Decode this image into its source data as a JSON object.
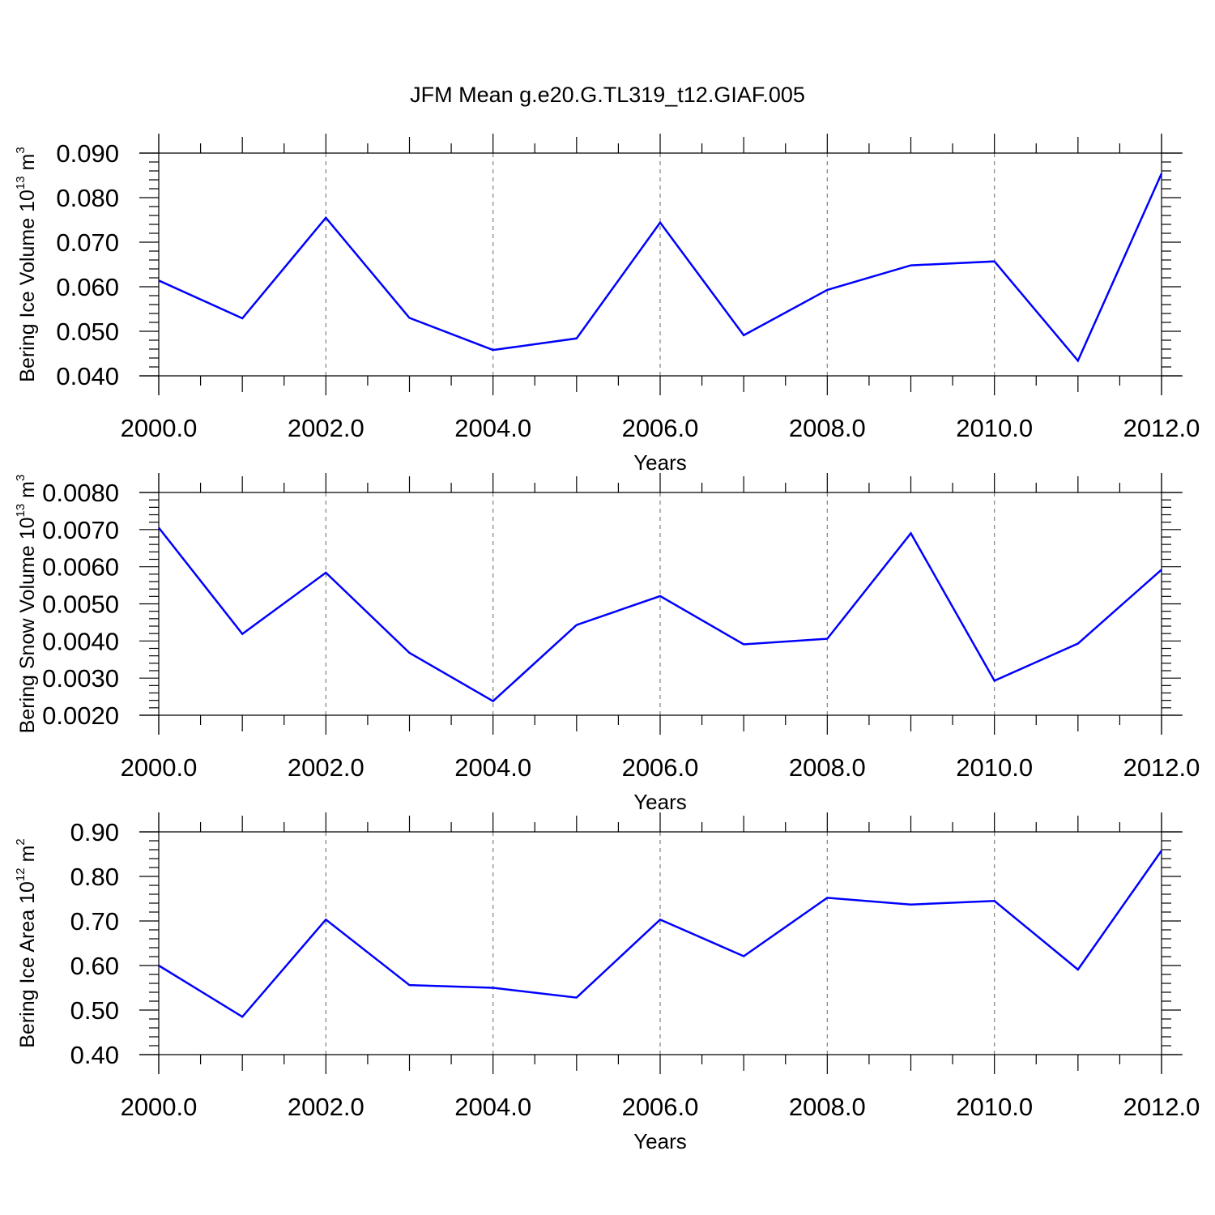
{
  "title": "JFM Mean g.e20.G.TL319_t12.GIAF.005",
  "colors": {
    "series": "#0000ff",
    "axis": "#000000",
    "grid": "#808080"
  },
  "chart_data": [
    {
      "type": "line",
      "title": "JFM Mean g.e20.G.TL319_t12.GIAF.005",
      "xlabel": "Years",
      "ylabel": {
        "prefix": "Bering Ice Volume 10",
        "exp": "13",
        "unit": " m",
        "unit_exp": "3"
      },
      "xlim": [
        2000,
        2012
      ],
      "ylim": [
        0.04,
        0.09
      ],
      "x_ticks": [
        "2000.0",
        "2002.0",
        "2004.0",
        "2006.0",
        "2008.0",
        "2010.0",
        "2012.0"
      ],
      "y_ticks": [
        "0.040",
        "0.050",
        "0.060",
        "0.070",
        "0.080",
        "0.090"
      ],
      "y_tick_values": [
        0.04,
        0.05,
        0.06,
        0.07,
        0.08,
        0.09
      ],
      "y_minor_step": 0.002,
      "grid": "vertical dashed at major x ticks",
      "x": [
        2000,
        2001,
        2002,
        2003,
        2004,
        2005,
        2006,
        2007,
        2008,
        2009,
        2010,
        2011,
        2012
      ],
      "values": [
        0.0614,
        0.0529,
        0.0755,
        0.053,
        0.0458,
        0.0484,
        0.0744,
        0.0491,
        0.0593,
        0.0648,
        0.0657,
        0.0434,
        0.0854
      ]
    },
    {
      "type": "line",
      "xlabel": "Years",
      "ylabel": {
        "prefix": "Bering Snow Volume 10",
        "exp": "13",
        "unit": " m",
        "unit_exp": "3"
      },
      "xlim": [
        2000,
        2012
      ],
      "ylim": [
        0.002,
        0.008
      ],
      "x_ticks": [
        "2000.0",
        "2002.0",
        "2004.0",
        "2006.0",
        "2008.0",
        "2010.0",
        "2012.0"
      ],
      "y_ticks": [
        "0.0020",
        "0.0030",
        "0.0040",
        "0.0050",
        "0.0060",
        "0.0070",
        "0.0080"
      ],
      "y_tick_values": [
        0.002,
        0.003,
        0.004,
        0.005,
        0.006,
        0.007,
        0.008
      ],
      "y_minor_step": 0.0002,
      "grid": "vertical dashed at major x ticks",
      "x": [
        2000,
        2001,
        2002,
        2003,
        2004,
        2005,
        2006,
        2007,
        2008,
        2009,
        2010,
        2011,
        2012
      ],
      "values": [
        0.00705,
        0.00419,
        0.00584,
        0.00368,
        0.00238,
        0.00443,
        0.00521,
        0.00391,
        0.00406,
        0.0069,
        0.00293,
        0.00393,
        0.00592
      ]
    },
    {
      "type": "line",
      "xlabel": "Years",
      "ylabel": {
        "prefix": "Bering Ice Area 10",
        "exp": "12",
        "unit": " m",
        "unit_exp": "2"
      },
      "xlim": [
        2000,
        2012
      ],
      "ylim": [
        0.4,
        0.9
      ],
      "x_ticks": [
        "2000.0",
        "2002.0",
        "2004.0",
        "2006.0",
        "2008.0",
        "2010.0",
        "2012.0"
      ],
      "y_ticks": [
        "0.40",
        "0.50",
        "0.60",
        "0.70",
        "0.80",
        "0.90"
      ],
      "y_tick_values": [
        0.4,
        0.5,
        0.6,
        0.7,
        0.8,
        0.9
      ],
      "y_minor_step": 0.02,
      "grid": "vertical dashed at major x ticks",
      "x": [
        2000,
        2001,
        2002,
        2003,
        2004,
        2005,
        2006,
        2007,
        2008,
        2009,
        2010,
        2011,
        2012
      ],
      "values": [
        0.6,
        0.485,
        0.703,
        0.556,
        0.55,
        0.528,
        0.703,
        0.621,
        0.752,
        0.737,
        0.745,
        0.591,
        0.858
      ]
    }
  ]
}
